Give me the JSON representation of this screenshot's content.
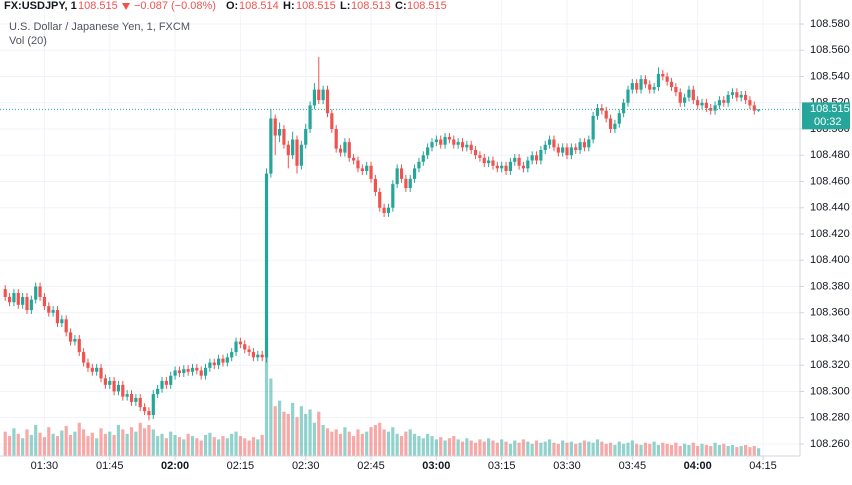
{
  "header": {
    "symbol": "FX:USDJPY, 1",
    "price": "108.515",
    "change": "−0.087 (−0.08%)",
    "o_label": "O:",
    "o": "108.514",
    "h_label": "H:",
    "h": "108.515",
    "l_label": "L:",
    "l": "108.513",
    "c_label": "C:",
    "c": "108.515"
  },
  "legend": {
    "name": "U.S. Dollar / Japanese Yen, 1, FXCM",
    "volume": "Vol (20)"
  },
  "chart_data": {
    "type": "candlestick",
    "up_color": "#26a69a",
    "down_color": "#ef5350",
    "grid": true,
    "last_price": 108.515,
    "last_price_label": "108.515",
    "countdown": "00:32",
    "xlim": [
      -1.2,
      182.5
    ],
    "ylim": [
      108.2508,
      108.5884
    ],
    "y2lim": [
      0,
      400
    ],
    "xticks": [
      {
        "value": 9,
        "label": "01:30"
      },
      {
        "value": 24,
        "label": "01:45"
      },
      {
        "value": 39,
        "label": "02:00"
      },
      {
        "value": 54,
        "label": "02:15"
      },
      {
        "value": 69,
        "label": "02:30"
      },
      {
        "value": 84,
        "label": "02:45"
      },
      {
        "value": 99,
        "label": "03:00"
      },
      {
        "value": 114,
        "label": "03:15"
      },
      {
        "value": 129,
        "label": "03:30"
      },
      {
        "value": 144,
        "label": "03:45"
      },
      {
        "value": 159,
        "label": "04:00"
      },
      {
        "value": 174,
        "label": "04:15"
      }
    ],
    "yticks": [
      {
        "value": 108.26,
        "label": "108.260"
      },
      {
        "value": 108.28,
        "label": "108.280"
      },
      {
        "value": 108.3,
        "label": "108.300"
      },
      {
        "value": 108.32,
        "label": "108.320"
      },
      {
        "value": 108.34,
        "label": "108.340"
      },
      {
        "value": 108.36,
        "label": "108.360"
      },
      {
        "value": 108.38,
        "label": "108.380"
      },
      {
        "value": 108.4,
        "label": "108.400"
      },
      {
        "value": 108.42,
        "label": "108.420"
      },
      {
        "value": 108.44,
        "label": "108.440"
      },
      {
        "value": 108.46,
        "label": "108.460"
      },
      {
        "value": 108.48,
        "label": "108.480"
      },
      {
        "value": 108.5,
        "label": "108.500"
      },
      {
        "value": 108.52,
        "label": "108.520"
      },
      {
        "value": 108.54,
        "label": "108.540"
      },
      {
        "value": 108.56,
        "label": "108.560"
      },
      {
        "value": 108.58,
        "label": "108.580"
      }
    ],
    "ohlc": [
      [
        108.378,
        108.381,
        108.369,
        108.372
      ],
      [
        108.372,
        108.375,
        108.365,
        108.368
      ],
      [
        108.368,
        108.378,
        108.365,
        108.375
      ],
      [
        108.375,
        108.378,
        108.363,
        108.366
      ],
      [
        108.366,
        108.375,
        108.363,
        108.372
      ],
      [
        108.372,
        108.375,
        108.359,
        108.362
      ],
      [
        108.362,
        108.373,
        108.359,
        108.37
      ],
      [
        108.37,
        108.383,
        108.367,
        108.38
      ],
      [
        108.38,
        108.383,
        108.369,
        108.372
      ],
      [
        108.372,
        108.375,
        108.362,
        108.365
      ],
      [
        108.365,
        108.368,
        108.357,
        108.36
      ],
      [
        108.36,
        108.365,
        108.357,
        108.362
      ],
      [
        108.362,
        108.365,
        108.349,
        108.352
      ],
      [
        108.352,
        108.358,
        108.349,
        108.355
      ],
      [
        108.355,
        108.358,
        108.342,
        108.345
      ],
      [
        108.345,
        108.348,
        108.335,
        108.338
      ],
      [
        108.338,
        108.343,
        108.335,
        108.34
      ],
      [
        108.34,
        108.343,
        108.327,
        108.33
      ],
      [
        108.33,
        108.333,
        108.319,
        108.322
      ],
      [
        108.322,
        108.325,
        108.315,
        108.318
      ],
      [
        108.318,
        108.321,
        108.312,
        108.315
      ],
      [
        108.315,
        108.321,
        108.312,
        108.318
      ],
      [
        108.318,
        108.321,
        108.307,
        108.31
      ],
      [
        108.31,
        108.313,
        108.302,
        108.305
      ],
      [
        108.305,
        108.311,
        108.302,
        108.308
      ],
      [
        108.308,
        108.311,
        108.297,
        108.3
      ],
      [
        108.3,
        108.308,
        108.297,
        108.305
      ],
      [
        108.305,
        108.308,
        108.293,
        108.296
      ],
      [
        108.296,
        108.301,
        108.293,
        108.298
      ],
      [
        108.298,
        108.301,
        108.289,
        108.292
      ],
      [
        108.292,
        108.298,
        108.289,
        108.295
      ],
      [
        108.295,
        108.298,
        108.285,
        108.288
      ],
      [
        108.288,
        108.291,
        108.282,
        108.285
      ],
      [
        108.285,
        108.288,
        108.278,
        108.282
      ],
      [
        108.282,
        108.301,
        108.279,
        108.298
      ],
      [
        108.298,
        108.305,
        108.295,
        108.302
      ],
      [
        108.302,
        108.311,
        108.299,
        108.308
      ],
      [
        108.308,
        108.311,
        108.302,
        108.305
      ],
      [
        108.305,
        108.315,
        108.302,
        108.312
      ],
      [
        108.312,
        108.319,
        108.309,
        108.316
      ],
      [
        108.316,
        108.319,
        108.311,
        108.314
      ],
      [
        108.314,
        108.32,
        108.311,
        108.317
      ],
      [
        108.317,
        108.32,
        108.312,
        108.315
      ],
      [
        108.315,
        108.321,
        108.312,
        108.318
      ],
      [
        108.318,
        108.321,
        108.313,
        108.316
      ],
      [
        108.316,
        108.319,
        108.309,
        108.312
      ],
      [
        108.312,
        108.321,
        108.309,
        108.318
      ],
      [
        108.318,
        108.325,
        108.315,
        108.322
      ],
      [
        108.322,
        108.325,
        108.317,
        108.32
      ],
      [
        108.32,
        108.328,
        108.317,
        108.325
      ],
      [
        108.325,
        108.328,
        108.319,
        108.322
      ],
      [
        108.322,
        108.329,
        108.319,
        108.326
      ],
      [
        108.326,
        108.333,
        108.323,
        108.33
      ],
      [
        108.33,
        108.341,
        108.327,
        108.338
      ],
      [
        108.338,
        108.341,
        108.333,
        108.336
      ],
      [
        108.336,
        108.339,
        108.329,
        108.332
      ],
      [
        108.332,
        108.335,
        108.327,
        108.33
      ],
      [
        108.33,
        108.333,
        108.323,
        108.326
      ],
      [
        108.326,
        108.331,
        108.323,
        108.328
      ],
      [
        108.328,
        108.331,
        108.323,
        108.326
      ],
      [
        108.326,
        108.47,
        108.322,
        108.466
      ],
      [
        108.466,
        108.515,
        108.463,
        108.508
      ],
      [
        108.508,
        108.511,
        108.48,
        108.495
      ],
      [
        108.495,
        108.505,
        108.49,
        108.5
      ],
      [
        108.5,
        108.503,
        108.485,
        108.488
      ],
      [
        108.488,
        108.491,
        108.47,
        108.48
      ],
      [
        108.48,
        108.498,
        108.477,
        108.492
      ],
      [
        108.492,
        108.495,
        108.466,
        108.472
      ],
      [
        108.472,
        108.491,
        108.469,
        108.488
      ],
      [
        108.488,
        108.504,
        108.485,
        108.5
      ],
      [
        108.5,
        108.521,
        108.497,
        108.518
      ],
      [
        108.518,
        108.535,
        108.515,
        108.53
      ],
      [
        108.53,
        108.555,
        108.519,
        108.522
      ],
      [
        108.522,
        108.533,
        108.519,
        108.53
      ],
      [
        108.53,
        108.533,
        108.509,
        108.512
      ],
      [
        108.512,
        108.515,
        108.497,
        108.5
      ],
      [
        108.5,
        108.503,
        108.482,
        108.485
      ],
      [
        108.485,
        108.488,
        108.479,
        108.482
      ],
      [
        108.482,
        108.493,
        108.479,
        108.49
      ],
      [
        108.49,
        108.493,
        108.475,
        108.478
      ],
      [
        108.478,
        108.481,
        108.473,
        108.476
      ],
      [
        108.476,
        108.479,
        108.467,
        108.47
      ],
      [
        108.47,
        108.473,
        108.465,
        108.468
      ],
      [
        108.468,
        108.475,
        108.465,
        108.472
      ],
      [
        108.472,
        108.475,
        108.459,
        108.462
      ],
      [
        108.462,
        108.465,
        108.449,
        108.452
      ],
      [
        108.452,
        108.455,
        108.437,
        108.44
      ],
      [
        108.44,
        108.443,
        108.433,
        108.436
      ],
      [
        108.436,
        108.443,
        108.433,
        108.44
      ],
      [
        108.44,
        108.461,
        108.437,
        108.458
      ],
      [
        108.458,
        108.473,
        108.455,
        108.47
      ],
      [
        108.47,
        108.473,
        108.459,
        108.462
      ],
      [
        108.462,
        108.465,
        108.452,
        108.455
      ],
      [
        108.455,
        108.465,
        108.452,
        108.462
      ],
      [
        108.462,
        108.473,
        108.459,
        108.47
      ],
      [
        108.47,
        108.478,
        108.467,
        108.475
      ],
      [
        108.475,
        108.483,
        108.472,
        108.48
      ],
      [
        108.48,
        108.489,
        108.477,
        108.486
      ],
      [
        108.486,
        108.493,
        108.483,
        108.49
      ],
      [
        108.49,
        108.495,
        108.487,
        108.492
      ],
      [
        108.492,
        108.495,
        108.485,
        108.488
      ],
      [
        108.488,
        108.497,
        108.485,
        108.494
      ],
      [
        108.494,
        108.497,
        108.489,
        108.492
      ],
      [
        108.492,
        108.495,
        108.485,
        108.488
      ],
      [
        108.488,
        108.493,
        108.485,
        108.49
      ],
      [
        108.49,
        108.493,
        108.483,
        108.486
      ],
      [
        108.486,
        108.491,
        108.483,
        108.488
      ],
      [
        108.488,
        108.491,
        108.481,
        108.484
      ],
      [
        108.484,
        108.487,
        108.477,
        108.48
      ],
      [
        108.48,
        108.483,
        108.475,
        108.478
      ],
      [
        108.478,
        108.481,
        108.471,
        108.474
      ],
      [
        108.474,
        108.479,
        108.471,
        108.476
      ],
      [
        108.476,
        108.479,
        108.469,
        108.472
      ],
      [
        108.472,
        108.475,
        108.467,
        108.47
      ],
      [
        108.47,
        108.475,
        108.467,
        108.472
      ],
      [
        108.472,
        108.475,
        108.465,
        108.468
      ],
      [
        108.468,
        108.478,
        108.465,
        108.475
      ],
      [
        108.475,
        108.481,
        108.472,
        108.478
      ],
      [
        108.478,
        108.481,
        108.469,
        108.472
      ],
      [
        108.472,
        108.475,
        108.467,
        108.47
      ],
      [
        108.47,
        108.479,
        108.467,
        108.476
      ],
      [
        108.476,
        108.483,
        108.473,
        108.48
      ],
      [
        108.48,
        108.483,
        108.473,
        108.476
      ],
      [
        108.476,
        108.487,
        108.473,
        108.484
      ],
      [
        108.484,
        108.491,
        108.481,
        108.488
      ],
      [
        108.488,
        108.495,
        108.485,
        108.492
      ],
      [
        108.492,
        108.495,
        108.483,
        108.486
      ],
      [
        108.486,
        108.489,
        108.479,
        108.482
      ],
      [
        108.482,
        108.489,
        108.479,
        108.486
      ],
      [
        108.486,
        108.489,
        108.477,
        108.48
      ],
      [
        108.48,
        108.489,
        108.477,
        108.486
      ],
      [
        108.486,
        108.489,
        108.481,
        108.484
      ],
      [
        108.484,
        108.493,
        108.481,
        108.49
      ],
      [
        108.49,
        108.493,
        108.483,
        108.486
      ],
      [
        108.486,
        108.495,
        108.483,
        108.492
      ],
      [
        108.492,
        108.513,
        108.489,
        108.51
      ],
      [
        108.51,
        108.519,
        108.507,
        108.516
      ],
      [
        108.516,
        108.519,
        108.511,
        108.514
      ],
      [
        108.514,
        108.517,
        108.505,
        108.508
      ],
      [
        108.508,
        108.511,
        108.497,
        108.5
      ],
      [
        108.5,
        108.507,
        108.497,
        108.504
      ],
      [
        108.504,
        108.515,
        108.501,
        108.512
      ],
      [
        108.512,
        108.523,
        108.509,
        108.52
      ],
      [
        108.52,
        108.533,
        108.517,
        108.53
      ],
      [
        108.53,
        108.538,
        108.527,
        108.535
      ],
      [
        108.535,
        108.538,
        108.527,
        108.53
      ],
      [
        108.53,
        108.541,
        108.527,
        108.538
      ],
      [
        108.538,
        108.541,
        108.531,
        108.534
      ],
      [
        108.534,
        108.537,
        108.527,
        108.53
      ],
      [
        108.53,
        108.535,
        108.527,
        108.532
      ],
      [
        108.532,
        108.547,
        108.529,
        108.542
      ],
      [
        108.542,
        108.545,
        108.537,
        108.54
      ],
      [
        108.54,
        108.543,
        108.533,
        108.536
      ],
      [
        108.536,
        108.539,
        108.529,
        108.532
      ],
      [
        108.532,
        108.535,
        108.525,
        108.528
      ],
      [
        108.528,
        108.531,
        108.517,
        108.52
      ],
      [
        108.52,
        108.527,
        108.517,
        108.524
      ],
      [
        108.524,
        108.533,
        108.521,
        108.53
      ],
      [
        108.53,
        108.533,
        108.519,
        108.522
      ],
      [
        108.522,
        108.525,
        108.515,
        108.518
      ],
      [
        108.518,
        108.523,
        108.515,
        108.52
      ],
      [
        108.52,
        108.523,
        108.513,
        108.516
      ],
      [
        108.516,
        108.519,
        108.511,
        108.514
      ],
      [
        108.514,
        108.521,
        108.511,
        108.518
      ],
      [
        108.518,
        108.525,
        108.515,
        108.522
      ],
      [
        108.522,
        108.525,
        108.517,
        108.52
      ],
      [
        108.52,
        108.529,
        108.517,
        108.526
      ],
      [
        108.526,
        108.531,
        108.523,
        108.528
      ],
      [
        108.528,
        108.531,
        108.521,
        108.524
      ],
      [
        108.524,
        108.529,
        108.521,
        108.526
      ],
      [
        108.526,
        108.529,
        108.519,
        108.522
      ],
      [
        108.522,
        108.525,
        108.515,
        108.518
      ],
      [
        108.518,
        108.521,
        108.511,
        108.514
      ],
      [
        108.514,
        108.515,
        108.513,
        108.515
      ]
    ],
    "volume": [
      22,
      18,
      25,
      20,
      16,
      24,
      19,
      28,
      21,
      17,
      26,
      20,
      18,
      23,
      27,
      19,
      22,
      30,
      24,
      18,
      21,
      16,
      25,
      20,
      22,
      19,
      28,
      24,
      20,
      26,
      22,
      30,
      25,
      28,
      24,
      18,
      20,
      16,
      22,
      19,
      17,
      15,
      20,
      18,
      16,
      14,
      19,
      21,
      17,
      15,
      18,
      16,
      20,
      22,
      18,
      16,
      14,
      17,
      15,
      19,
      100,
      70,
      45,
      50,
      40,
      38,
      48,
      35,
      45,
      38,
      42,
      30,
      40,
      28,
      25,
      22,
      24,
      20,
      26,
      22,
      18,
      24,
      20,
      22,
      26,
      28,
      30,
      24,
      22,
      26,
      20,
      18,
      22,
      24,
      20,
      18,
      16,
      20,
      18,
      15,
      17,
      14,
      16,
      18,
      15,
      13,
      16,
      14,
      12,
      15,
      13,
      16,
      14,
      12,
      15,
      13,
      11,
      14,
      12,
      15,
      13,
      11,
      14,
      12,
      13,
      15,
      12,
      11,
      14,
      12,
      13,
      11,
      12,
      14,
      13,
      12,
      15,
      13,
      11,
      12,
      10,
      13,
      11,
      12,
      14,
      11,
      10,
      12,
      11,
      13,
      10,
      12,
      11,
      10,
      12,
      9,
      11,
      10,
      12,
      9,
      11,
      10,
      9,
      12,
      10,
      11,
      9,
      10,
      8,
      9,
      10,
      8,
      9,
      7
    ]
  }
}
